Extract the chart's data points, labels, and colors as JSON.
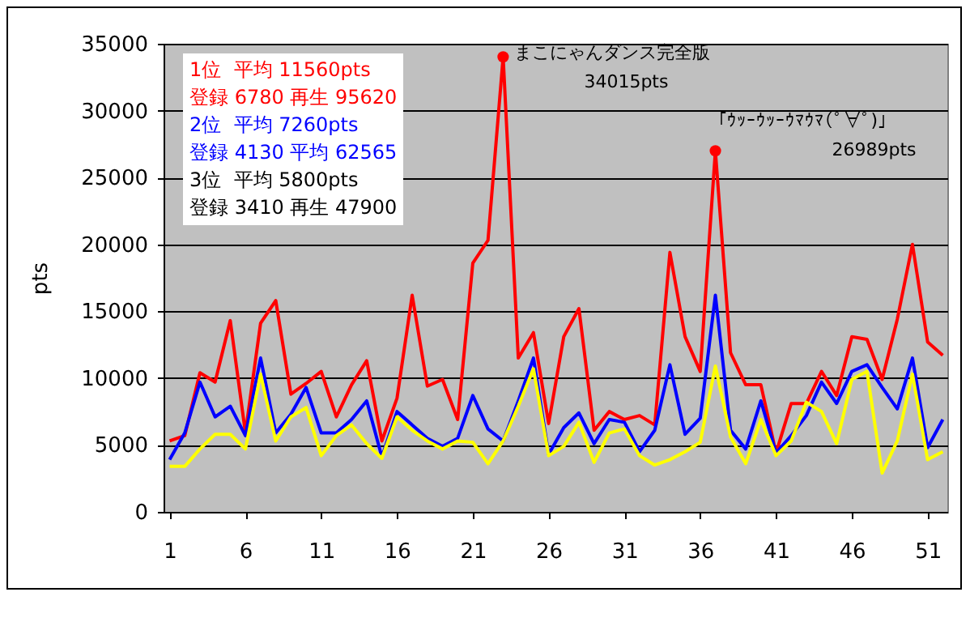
{
  "chart_data": {
    "type": "line",
    "ylabel": "pts",
    "x": [
      1,
      2,
      3,
      4,
      5,
      6,
      7,
      8,
      9,
      10,
      11,
      12,
      13,
      14,
      15,
      16,
      17,
      18,
      19,
      20,
      21,
      22,
      23,
      24,
      25,
      26,
      27,
      28,
      29,
      30,
      31,
      32,
      33,
      34,
      35,
      36,
      37,
      38,
      39,
      40,
      41,
      42,
      43,
      44,
      45,
      46,
      47,
      48,
      49,
      50,
      51,
      52
    ],
    "xlim": [
      0.6,
      52.3
    ],
    "xticks": [
      1,
      6,
      11,
      16,
      21,
      26,
      31,
      36,
      41,
      46,
      51
    ],
    "ylim": [
      0,
      35000
    ],
    "yticks": [
      0,
      5000,
      10000,
      15000,
      20000,
      25000,
      30000,
      35000
    ],
    "grid": "y",
    "legend": false,
    "marker": "none",
    "line_style": "solid",
    "series": [
      {
        "color": "#ff0000",
        "values": [
          5300,
          5700,
          10400,
          9700,
          14300,
          5900,
          14100,
          15800,
          8800,
          9600,
          10500,
          7100,
          9500,
          11300,
          5300,
          8500,
          16200,
          9400,
          9900,
          6900,
          18600,
          20300,
          34015,
          11500,
          13400,
          6600,
          13100,
          15200,
          6100,
          7500,
          6900,
          7200,
          6500,
          19400,
          13100,
          10500,
          26989,
          11900,
          9500,
          9500,
          4400,
          8100,
          8100,
          10500,
          8700,
          13100,
          12900,
          9900,
          14400,
          20000,
          12700,
          11700
        ]
      },
      {
        "color": "#0000ff",
        "values": [
          3900,
          5900,
          9700,
          7100,
          7900,
          5700,
          11500,
          5900,
          7300,
          9300,
          5900,
          5900,
          6900,
          8300,
          4100,
          7500,
          6500,
          5500,
          4900,
          5500,
          8700,
          6200,
          5300,
          8300,
          11500,
          4300,
          6300,
          7400,
          5100,
          6900,
          6700,
          4500,
          6100,
          11000,
          5800,
          7000,
          16200,
          6100,
          4700,
          8300,
          4400,
          5700,
          7200,
          9700,
          8100,
          10500,
          11000,
          9300,
          7700,
          11500,
          4800,
          6900
        ]
      },
      {
        "color": "#ffff00",
        "values": [
          3400,
          3400,
          4700,
          5800,
          5800,
          4700,
          10300,
          5300,
          7100,
          7800,
          4200,
          5700,
          6500,
          5100,
          4000,
          7100,
          6100,
          5300,
          4700,
          5300,
          5200,
          3600,
          5300,
          7900,
          10700,
          4200,
          4900,
          6700,
          3700,
          5900,
          6200,
          4200,
          3500,
          3900,
          4500,
          5200,
          10900,
          5600,
          3600,
          6900,
          4200,
          5300,
          8200,
          7500,
          5100,
          9900,
          10500,
          2900,
          5300,
          10300,
          3900,
          4500
        ]
      }
    ],
    "annotations": [
      "1位  平均 11560pts",
      "登録 6780 再生 95620",
      "2位  平均 7260pts",
      "登録 4130 平均 62565",
      "3位  平均 5800pts",
      "登録 3410 再生 47900",
      {
        "text": "まこにゃんダンス完全版\n34015pts",
        "x": 23,
        "y": 34015
      },
      {
        "text": "「ｳｯｰｳｯｰｳﾏｳﾏ(ﾟ∀ﾟ)」\n26989pts",
        "x": 37,
        "y": 26989
      }
    ]
  }
}
